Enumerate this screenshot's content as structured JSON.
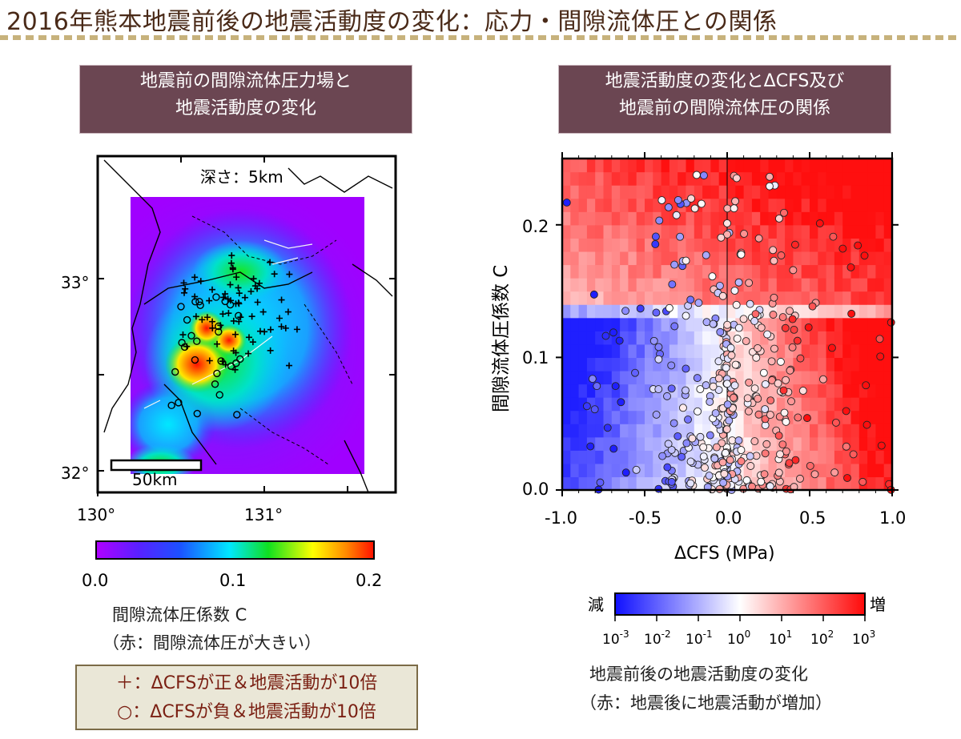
{
  "header": {
    "title": "2016年熊本地震前後の地震活動度の変化：応力・間隙流体圧との関係",
    "rule_colors": [
      "#c7b27c",
      "#e7dcc0"
    ]
  },
  "left_panel": {
    "heading_line1": "地震前の間隙流体圧力場と",
    "heading_line2": "地震活動度の変化",
    "depth_label": "深さ：5km",
    "scale_label": "50km",
    "lat_ticks": [
      "33°",
      "32°"
    ],
    "lon_ticks": [
      "130°",
      "131°"
    ],
    "colorbar_ticks": [
      "0.0",
      "0.1",
      "0.2"
    ],
    "colorbar_label_line1": "間隙流体圧係数 C",
    "colorbar_label_line2": "（赤：間隙流体圧が大きい）",
    "legend_plus": "＋：ΔCFSが正＆地震活動が10倍",
    "legend_circle": "○：ΔCFSが負＆地震活動が10倍"
  },
  "right_panel": {
    "heading_line1": "地震活動度の変化とΔCFS及び",
    "heading_line2": "地震前の間隙流体圧の関係",
    "colorbar_low": "減",
    "colorbar_high": "増",
    "colorbar_ticks": [
      "10-3",
      "10-2",
      "10-1",
      "100",
      "101",
      "102",
      "103"
    ],
    "caption_line1": "地震前後の地震活動度の変化",
    "caption_line2": "（赤：地震後に地震活動が増加）"
  },
  "chart_data": [
    {
      "type": "heatmap",
      "description_source": "left map",
      "xlim": [
        130.0,
        131.8
      ],
      "ylim": [
        31.9,
        33.6
      ],
      "colorscale": "pore-fluid pressure coefficient C (purple → blue → cyan → green → yellow → red)",
      "colorbar_range": [
        0.0,
        0.2
      ],
      "colorbar_ticks": [
        0.0,
        0.1,
        0.2
      ],
      "x_ticks": [
        130,
        131
      ],
      "y_ticks": [
        32,
        33
      ],
      "colors": [
        "#a000ff",
        "#3b2bff",
        "#00e7ff",
        "#10e020",
        "#ffff00",
        "#ff9a00",
        "#ff1000"
      ]
    },
    {
      "type": "scatter",
      "background": "heatmap",
      "xlabel": "ΔCFS (MPa)",
      "ylabel": "間隙流体圧係数 C",
      "xlim": [
        -1.0,
        1.0
      ],
      "ylim": [
        0.0,
        0.25
      ],
      "x_ticks": [
        "-1.0",
        "-0.5",
        "0.0",
        "0.5",
        "1.0"
      ],
      "y_ticks": [
        "0.0",
        "0.1",
        "0.2"
      ],
      "colorbar_label": "地震前後の地震活動度の変化",
      "colorbar_range_log10": [
        -3,
        3
      ],
      "colors": {
        "decrease": "#1717ff",
        "neutral": "#ffffff",
        "increase": "#ff1010"
      }
    }
  ]
}
